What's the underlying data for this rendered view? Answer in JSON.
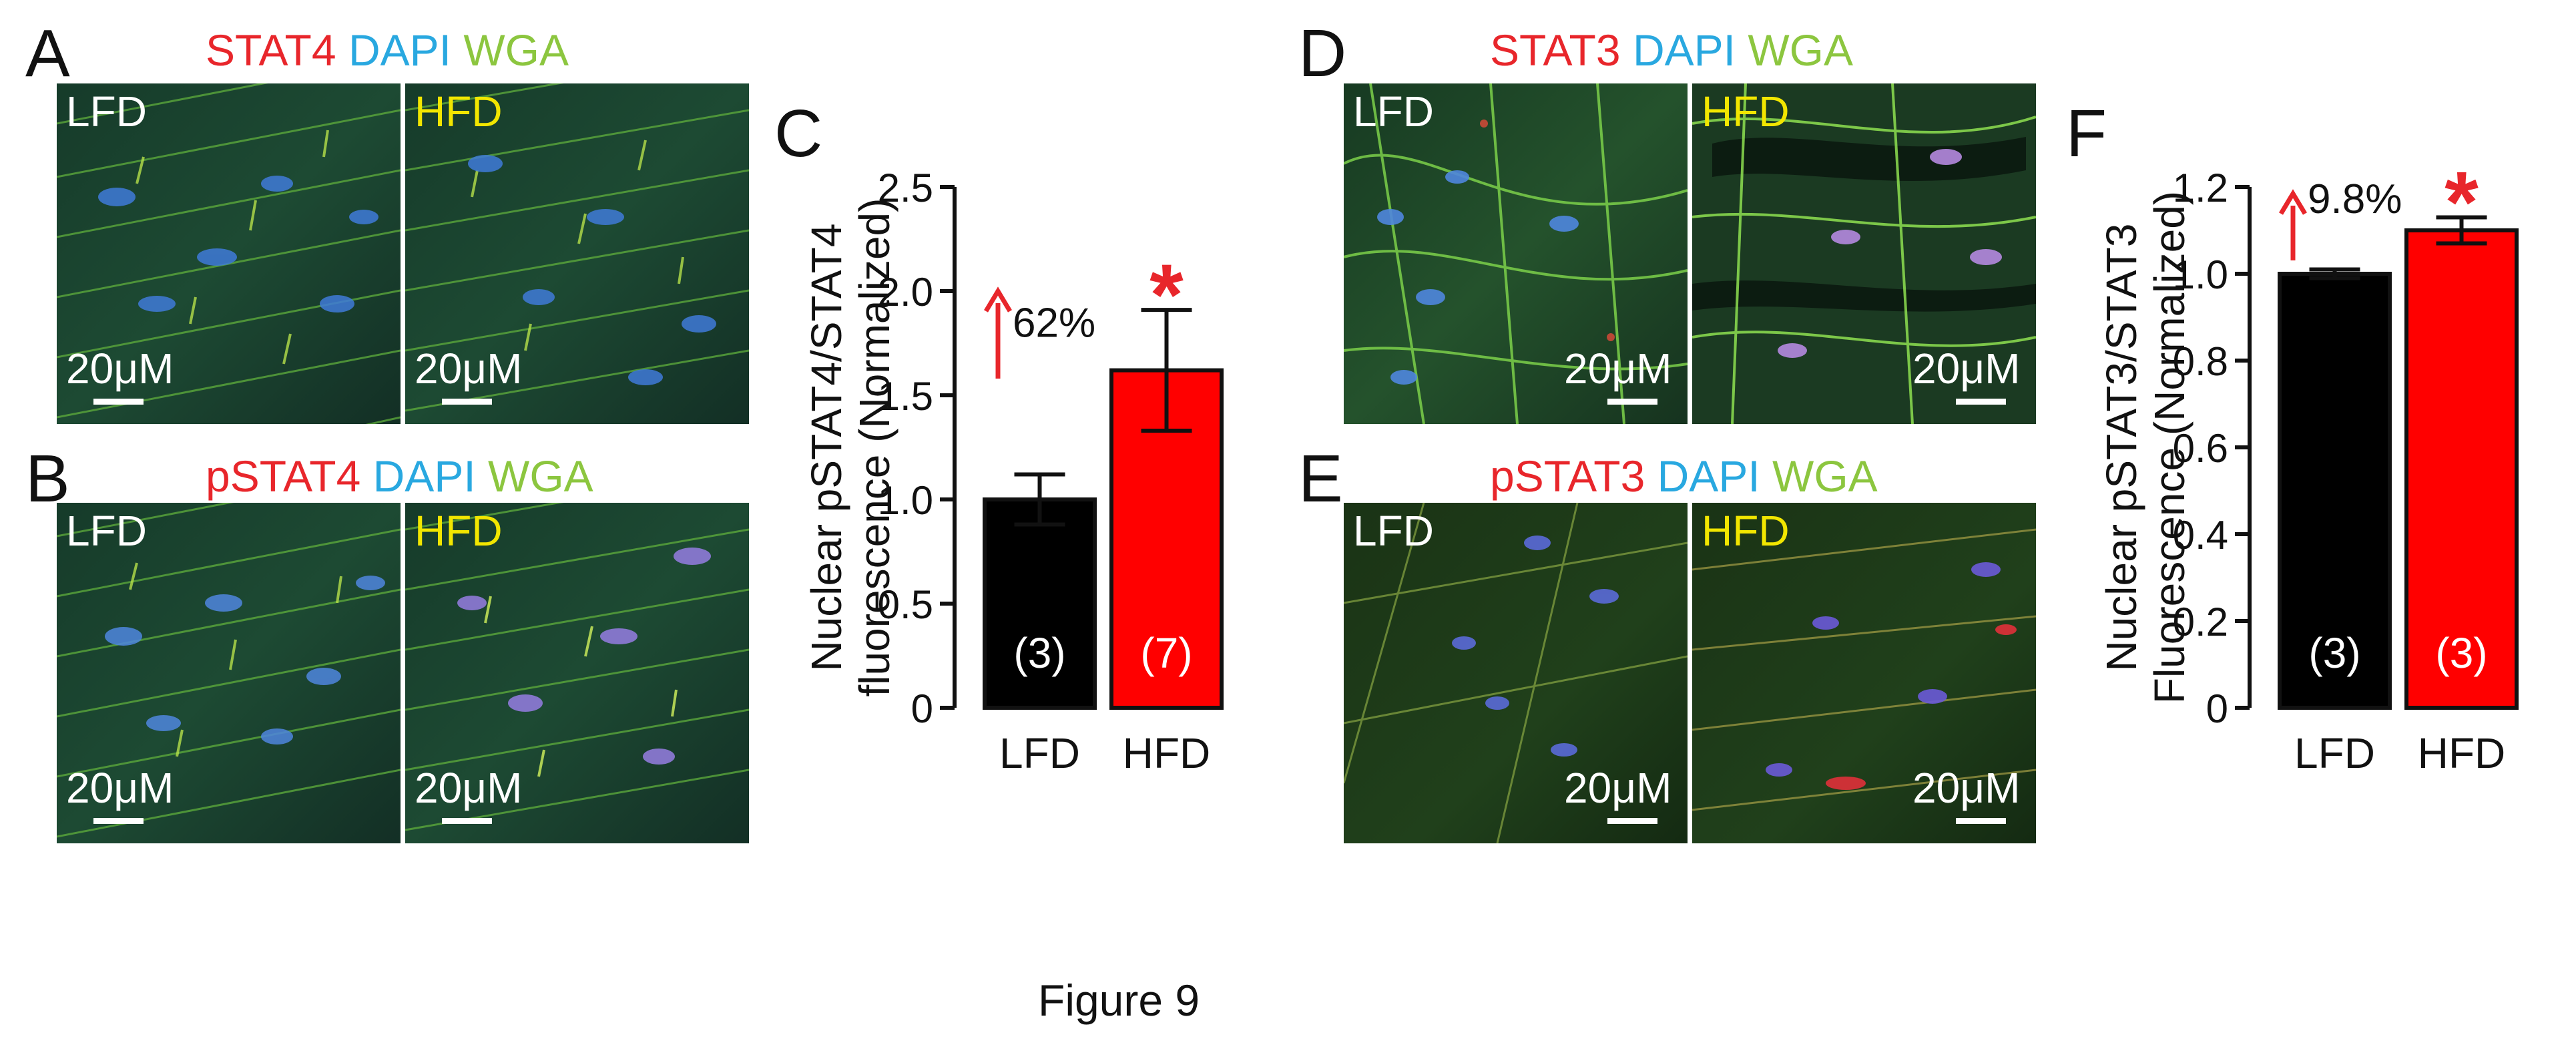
{
  "figure_caption": "Figure 9",
  "colors": {
    "red": "#e8262b",
    "dapi": "#29a8e0",
    "wga": "#8cc63f",
    "yellow": "#f2e600",
    "bar_lfd": "#000000",
    "bar_hfd": "#ff0000"
  },
  "panels": {
    "A": {
      "letter": "A",
      "stain": [
        "STAT4",
        "DAPI",
        "WGA"
      ],
      "images": [
        {
          "group": "LFD",
          "scale": "20μM"
        },
        {
          "group": "HFD",
          "scale": "20μM"
        }
      ]
    },
    "B": {
      "letter": "B",
      "stain": [
        "pSTAT4",
        "DAPI",
        "WGA"
      ],
      "images": [
        {
          "group": "LFD",
          "scale": "20μM"
        },
        {
          "group": "HFD",
          "scale": "20μM"
        }
      ]
    },
    "D": {
      "letter": "D",
      "stain": [
        "STAT3",
        "DAPI",
        "WGA"
      ],
      "images": [
        {
          "group": "LFD",
          "scale": "20μM"
        },
        {
          "group": "HFD",
          "scale": "20μM"
        }
      ]
    },
    "E": {
      "letter": "E",
      "stain": [
        "pSTAT3",
        "DAPI",
        "WGA"
      ],
      "images": [
        {
          "group": "LFD",
          "scale": "20μM"
        },
        {
          "group": "HFD",
          "scale": "20μM"
        }
      ]
    }
  },
  "chart_data": [
    {
      "panel": "C",
      "type": "bar",
      "categories": [
        "LFD",
        "HFD"
      ],
      "values": [
        1.0,
        1.62
      ],
      "errors": [
        0.12,
        0.29
      ],
      "n_labels": [
        "(3)",
        "(7)"
      ],
      "ylabel_lines": [
        "Nuclear pSTAT4/STAT4",
        "fluorescence (Normalized)"
      ],
      "ylim": [
        0,
        2.5
      ],
      "yticks": [
        "0",
        "0.5",
        "1.0",
        "1.5",
        "2.0",
        "2.5"
      ],
      "annotation": "62%",
      "significance": "*"
    },
    {
      "panel": "F",
      "type": "bar",
      "categories": [
        "LFD",
        "HFD"
      ],
      "values": [
        1.0,
        1.1
      ],
      "errors": [
        0.01,
        0.03
      ],
      "n_labels": [
        "(3)",
        "(3)"
      ],
      "ylabel_lines": [
        "Nuclear pSTAT3/STAT3",
        "Fluorescence (Normalized)"
      ],
      "ylim": [
        0,
        1.2
      ],
      "yticks": [
        "0",
        "0.2",
        "0.4",
        "0.6",
        "0.8",
        "1.0",
        "1.2"
      ],
      "annotation": "9.8%",
      "significance": "*"
    }
  ]
}
